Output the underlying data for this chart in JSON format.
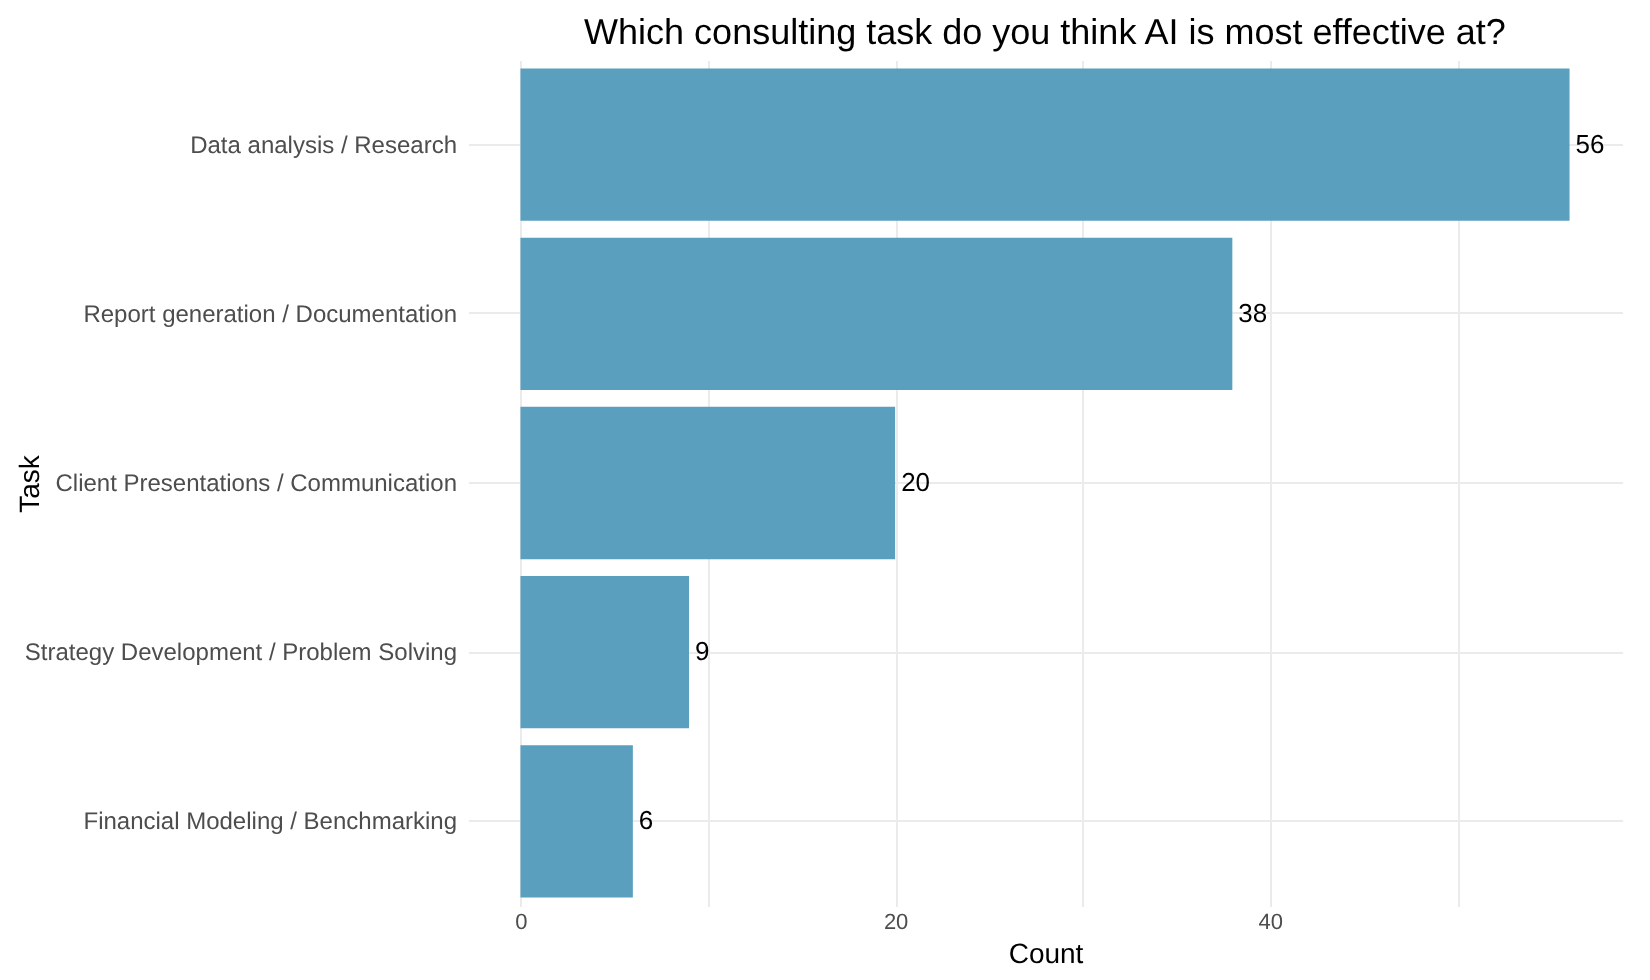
{
  "chart_data": {
    "type": "bar",
    "orientation": "horizontal",
    "title": "Which consulting task do you think AI is most effective at?",
    "xlabel": "Count",
    "ylabel": "Task",
    "categories": [
      "Data analysis / Research",
      "Report generation / Documentation",
      "Client Presentations / Communication",
      "Strategy Development / Problem Solving",
      "Financial Modeling / Benchmarking"
    ],
    "values": [
      56,
      38,
      20,
      9,
      6
    ],
    "color": "#5b9fbf",
    "data_labels": true,
    "xlim": [
      -2.8,
      58.8
    ],
    "xticks": [
      0,
      {
        "value": 10,
        "label": null
      },
      20,
      {
        "value": 30,
        "label": null
      },
      40,
      {
        "value": 50,
        "label": null
      }
    ],
    "grid": true
  }
}
